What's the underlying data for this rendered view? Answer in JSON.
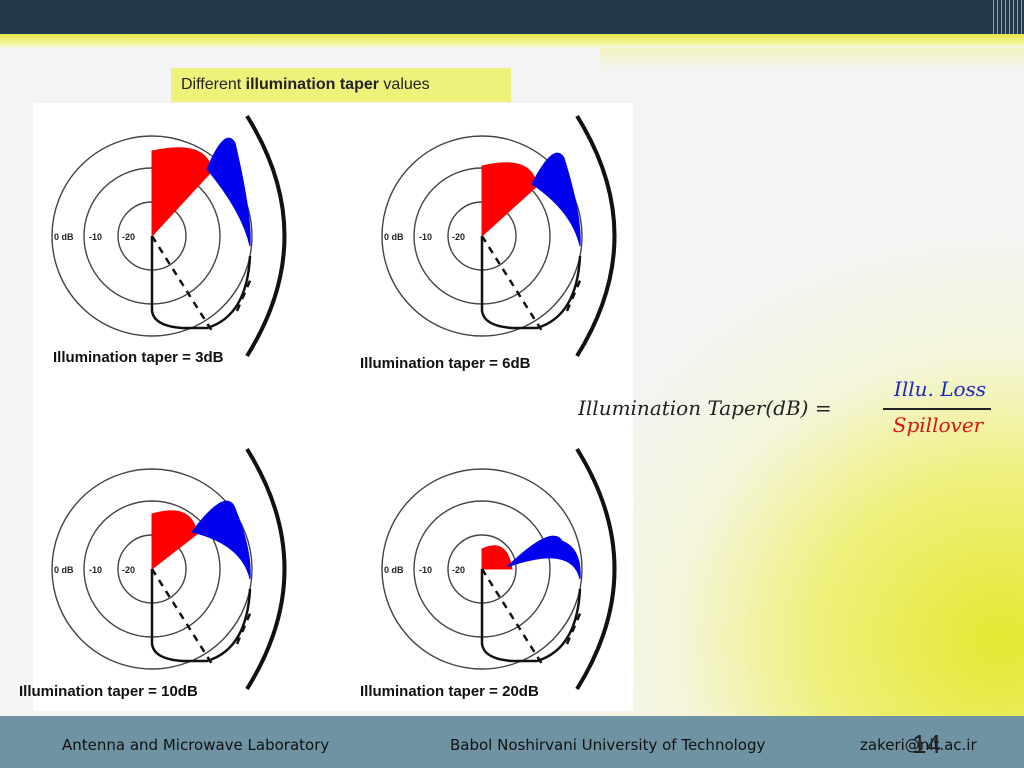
{
  "caption": {
    "prefix": "Different ",
    "bold": "illumination taper",
    "suffix": " values"
  },
  "panels": [
    {
      "label": "Illumination taper = 3dB"
    },
    {
      "label": "Illumination taper = 6dB"
    },
    {
      "label": "Illumination taper = 10dB"
    },
    {
      "label": "Illumination taper = 20dB"
    }
  ],
  "polar_ticks": [
    "0 dB",
    "-10",
    "-20"
  ],
  "formula": {
    "lhs": "Illumination Taper(dB) =",
    "numerator": "Illu. Loss",
    "denominator": "Spillover"
  },
  "footer": {
    "left": "Antenna and Microwave Laboratory",
    "center": "Babol Noshirvani University of Technology",
    "right": "zakeri@nit.ac.ir"
  },
  "page_number": "14",
  "colors": {
    "illumination_loss": "#ff0000",
    "spillover": "#0000ee",
    "caption_bg": "#eef27a",
    "footer_bg": "#6f93a3",
    "topbar": "#22394a"
  }
}
